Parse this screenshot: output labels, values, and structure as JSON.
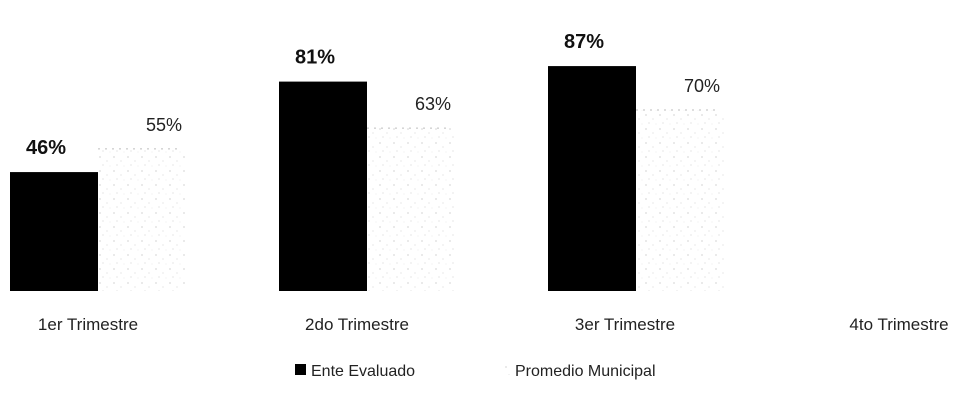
{
  "chart_data": {
    "type": "bar",
    "categories": [
      "1er Trimestre",
      "2do Trimestre",
      "3er Trimestre",
      "4to Trimestre"
    ],
    "series": [
      {
        "name": "Ente Evaluado",
        "values": [
          46,
          81,
          87,
          null
        ],
        "labels": [
          "46%",
          "81%",
          "87%",
          ""
        ],
        "color": "#000000"
      },
      {
        "name": "Promedio Municipal",
        "values": [
          55,
          63,
          70,
          null
        ],
        "labels": [
          "55%",
          "63%",
          "70%",
          ""
        ],
        "color": "#ffffff"
      }
    ],
    "ylim": [
      0,
      100
    ],
    "grid": false,
    "legend": "bottom-center"
  }
}
